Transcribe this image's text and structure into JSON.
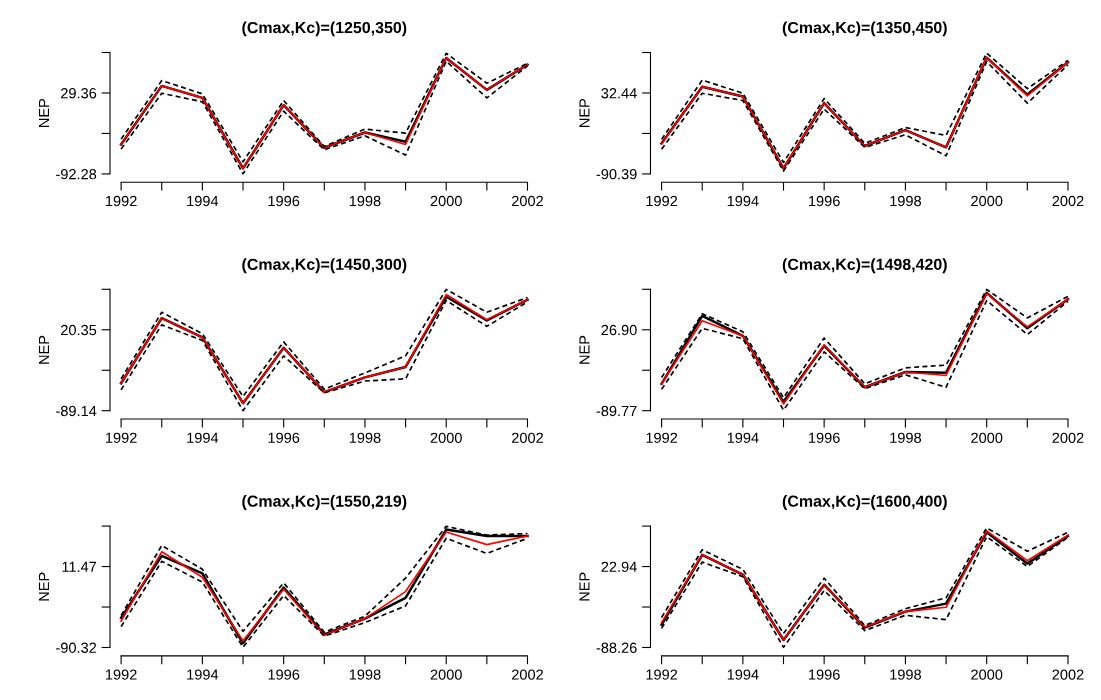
{
  "chart_data": [
    {
      "type": "line",
      "title": "(Cmax,Kc)=(1250,350)",
      "ylabel": "NEP",
      "x": [
        1992,
        1993,
        1994,
        1995,
        1996,
        1997,
        1998,
        1999,
        2000,
        2001,
        2002
      ],
      "xlim": [
        1992,
        2002
      ],
      "xticks": [
        1992,
        {
          "value": 1993,
          "label": null
        },
        1994,
        {
          "value": 1995,
          "label": null
        },
        1996,
        {
          "value": 1997,
          "label": null
        },
        1998,
        {
          "value": 1999,
          "label": null
        },
        2000,
        {
          "value": 2001,
          "label": null
        },
        2002
      ],
      "ylim": [
        -92.28,
        90.18
      ],
      "yticks": [
        -92.28,
        {
          "value": -31.46,
          "label": null
        },
        29.36,
        {
          "value": 90.18,
          "label": null
        }
      ],
      "series": [
        {
          "color": "#000000",
          "line_style": "solid",
          "values": [
            -48,
            40,
            22,
            -84,
            11,
            -53,
            -30,
            -44,
            82,
            34,
            72
          ]
        },
        {
          "color": "#ff0000",
          "line_style": "solid",
          "values": [
            -48,
            40,
            22,
            -84,
            11,
            -53,
            -30,
            -48,
            82,
            34,
            72
          ]
        },
        {
          "color": "#000000",
          "line_style": "dashed",
          "values": [
            -40,
            48,
            28,
            -74,
            18,
            -51,
            -25,
            -31,
            89,
            44,
            74
          ]
        },
        {
          "color": "#000000",
          "line_style": "dashed",
          "values": [
            -55,
            29,
            16,
            -92,
            2,
            -56,
            -35,
            -64,
            77,
            22,
            70
          ]
        }
      ]
    },
    {
      "type": "line",
      "title": "(Cmax,Kc)=(1350,450)",
      "ylabel": "NEP",
      "x": [
        1992,
        1993,
        1994,
        1995,
        1996,
        1997,
        1998,
        1999,
        2000,
        2001,
        2002
      ],
      "xlim": [
        1992,
        2002
      ],
      "xticks": [
        1992,
        {
          "value": 1993,
          "label": null
        },
        1994,
        {
          "value": 1995,
          "label": null
        },
        1996,
        {
          "value": 1997,
          "label": null
        },
        1998,
        {
          "value": 1999,
          "label": null
        },
        2000,
        {
          "value": 2001,
          "label": null
        },
        2002
      ],
      "ylim": [
        -90.39,
        93.86
      ],
      "yticks": [
        -90.39,
        {
          "value": -28.98,
          "label": null
        },
        32.44,
        {
          "value": 93.86,
          "label": null
        }
      ],
      "series": [
        {
          "color": "#000000",
          "line_style": "solid",
          "values": [
            -44,
            42,
            27,
            -82,
            17,
            -48,
            -24,
            -50,
            86,
            30,
            79
          ]
        },
        {
          "color": "#ff0000",
          "line_style": "solid",
          "values": [
            -45,
            42,
            27,
            -82,
            17,
            -48,
            -24,
            -50,
            86,
            28,
            79
          ]
        },
        {
          "color": "#000000",
          "line_style": "dashed",
          "values": [
            -38,
            52,
            32,
            -73,
            24,
            -44,
            -20,
            -32,
            93,
            39,
            82
          ]
        },
        {
          "color": "#000000",
          "line_style": "dashed",
          "values": [
            -53,
            32,
            21,
            -86,
            8,
            -50,
            -31,
            -63,
            80,
            17,
            75
          ]
        }
      ]
    },
    {
      "type": "line",
      "title": "(Cmax,Kc)=(1450,300)",
      "ylabel": "NEP",
      "x": [
        1992,
        1993,
        1994,
        1995,
        1996,
        1997,
        1998,
        1999,
        2000,
        2001,
        2002
      ],
      "xlim": [
        1992,
        2002
      ],
      "xticks": [
        1992,
        {
          "value": 1993,
          "label": null
        },
        1994,
        {
          "value": 1995,
          "label": null
        },
        1996,
        {
          "value": 1997,
          "label": null
        },
        1998,
        {
          "value": 1999,
          "label": null
        },
        2000,
        {
          "value": 2001,
          "label": null
        },
        2002
      ],
      "ylim": [
        -89.14,
        75.1
      ],
      "yticks": [
        -89.14,
        {
          "value": -34.4,
          "label": null
        },
        20.35,
        {
          "value": 75.1,
          "label": null
        }
      ],
      "series": [
        {
          "color": "#000000",
          "line_style": "solid",
          "values": [
            -52,
            36,
            10,
            -79,
            -4,
            -64,
            -44,
            -30,
            65,
            33,
            61
          ]
        },
        {
          "color": "#ff0000",
          "line_style": "solid",
          "values": [
            -52,
            36,
            10,
            -79,
            -4,
            -64,
            -44,
            -30,
            68,
            34,
            61
          ]
        },
        {
          "color": "#000000",
          "line_style": "dashed",
          "values": [
            -46,
            44,
            15,
            -70,
            4,
            -60,
            -38,
            -15,
            75,
            44,
            64
          ]
        },
        {
          "color": "#000000",
          "line_style": "dashed",
          "values": [
            -61,
            27,
            6,
            -89,
            -15,
            -65,
            -49,
            -46,
            60,
            25,
            58
          ]
        }
      ]
    },
    {
      "type": "line",
      "title": "(Cmax,Kc)=(1498,420)",
      "ylabel": "NEP",
      "x": [
        1992,
        1993,
        1994,
        1995,
        1996,
        1997,
        1998,
        1999,
        2000,
        2001,
        2002
      ],
      "xlim": [
        1992,
        2002
      ],
      "xticks": [
        1992,
        {
          "value": 1993,
          "label": null
        },
        1994,
        {
          "value": 1995,
          "label": null
        },
        1996,
        {
          "value": 1997,
          "label": null
        },
        1998,
        {
          "value": 1999,
          "label": null
        },
        2000,
        {
          "value": 2001,
          "label": null
        },
        2002
      ],
      "ylim": [
        -89.77,
        85.24
      ],
      "yticks": [
        -89.77,
        {
          "value": -31.44,
          "label": null
        },
        {
          "value": 26.9,
          "label": "26.90"
        },
        {
          "value": 85.24,
          "label": null
        }
      ],
      "series": [
        {
          "color": "#000000",
          "line_style": "solid",
          "values": [
            -51,
            47,
            18,
            -77,
            4,
            -56,
            -34,
            -35,
            80,
            29,
            71
          ]
        },
        {
          "color": "#ff0000",
          "line_style": "solid",
          "values": [
            -51,
            40,
            18,
            -80,
            5,
            -56,
            -34,
            -39,
            79,
            31,
            71
          ]
        },
        {
          "color": "#000000",
          "line_style": "dashed",
          "values": [
            -42,
            50,
            24,
            -71,
            15,
            -51,
            -28,
            -24,
            85,
            44,
            75
          ]
        },
        {
          "color": "#000000",
          "line_style": "dashed",
          "values": [
            -59,
            29,
            14,
            -89,
            -5,
            -58,
            -38,
            -56,
            69,
            20,
            68
          ]
        }
      ]
    },
    {
      "type": "line",
      "title": "(Cmax,Kc)=(1550,219)",
      "ylabel": "NEP",
      "x": [
        1992,
        1993,
        1994,
        1995,
        1996,
        1997,
        1998,
        1999,
        2000,
        2001,
        2002
      ],
      "xlim": [
        1992,
        2002
      ],
      "xticks": [
        1992,
        {
          "value": 1993,
          "label": null
        },
        1994,
        {
          "value": 1995,
          "label": null
        },
        1996,
        {
          "value": 1997,
          "label": null
        },
        1998,
        {
          "value": 1999,
          "label": null
        },
        2000,
        {
          "value": 2001,
          "label": null
        },
        2002
      ],
      "ylim": [
        -90.32,
        62.37
      ],
      "yticks": [
        -90.32,
        {
          "value": -39.43,
          "label": null
        },
        11.47,
        {
          "value": 62.37,
          "label": null
        }
      ],
      "series": [
        {
          "color": "#000000",
          "line_style": "solid",
          "values": [
            -53,
            25,
            3,
            -85,
            -15,
            -74,
            -54,
            -28,
            58,
            50,
            50
          ]
        },
        {
          "color": "#ff0000",
          "line_style": "solid",
          "values": [
            -57,
            30,
            -2,
            -82,
            -17,
            -75,
            -54,
            -20,
            55,
            39,
            50
          ]
        },
        {
          "color": "#000000",
          "line_style": "dashed",
          "values": [
            -50,
            38,
            8,
            -70,
            -9,
            -71,
            -51,
            -3,
            62,
            51,
            53
          ]
        },
        {
          "color": "#000000",
          "line_style": "dashed",
          "values": [
            -64,
            18,
            -8,
            -90,
            -25,
            -76,
            -59,
            -38,
            47,
            28,
            47
          ]
        }
      ]
    },
    {
      "type": "line",
      "title": "(Cmax,Kc)=(1600,400)",
      "ylabel": "NEP",
      "x": [
        1992,
        1993,
        1994,
        1995,
        1996,
        1997,
        1998,
        1999,
        2000,
        2001,
        2002
      ],
      "xlim": [
        1992,
        2002
      ],
      "xticks": [
        1992,
        {
          "value": 1993,
          "label": null
        },
        1994,
        {
          "value": 1995,
          "label": null
        },
        1996,
        {
          "value": 1997,
          "label": null
        },
        1998,
        {
          "value": 1999,
          "label": null
        },
        2000,
        {
          "value": 2001,
          "label": null
        },
        2002
      ],
      "ylim": [
        -88.26,
        78.54
      ],
      "yticks": [
        -88.26,
        {
          "value": -32.66,
          "label": null
        },
        22.94,
        {
          "value": 78.54,
          "label": null
        }
      ],
      "series": [
        {
          "color": "#000000",
          "line_style": "solid",
          "values": [
            -57,
            39,
            12,
            -78,
            -2,
            -61,
            -39,
            -28,
            70,
            27,
            65
          ]
        },
        {
          "color": "#ff0000",
          "line_style": "solid",
          "values": [
            -54,
            39,
            12,
            -78,
            -2,
            -60,
            -39,
            -33,
            72,
            31,
            66
          ]
        },
        {
          "color": "#000000",
          "line_style": "dashed",
          "values": [
            -47,
            46,
            19,
            -69,
            7,
            -58,
            -35,
            -20,
            76,
            44,
            70
          ]
        },
        {
          "color": "#000000",
          "line_style": "dashed",
          "values": [
            -62,
            29,
            9,
            -88,
            -10,
            -65,
            -44,
            -50,
            64,
            23,
            63
          ]
        }
      ]
    }
  ]
}
